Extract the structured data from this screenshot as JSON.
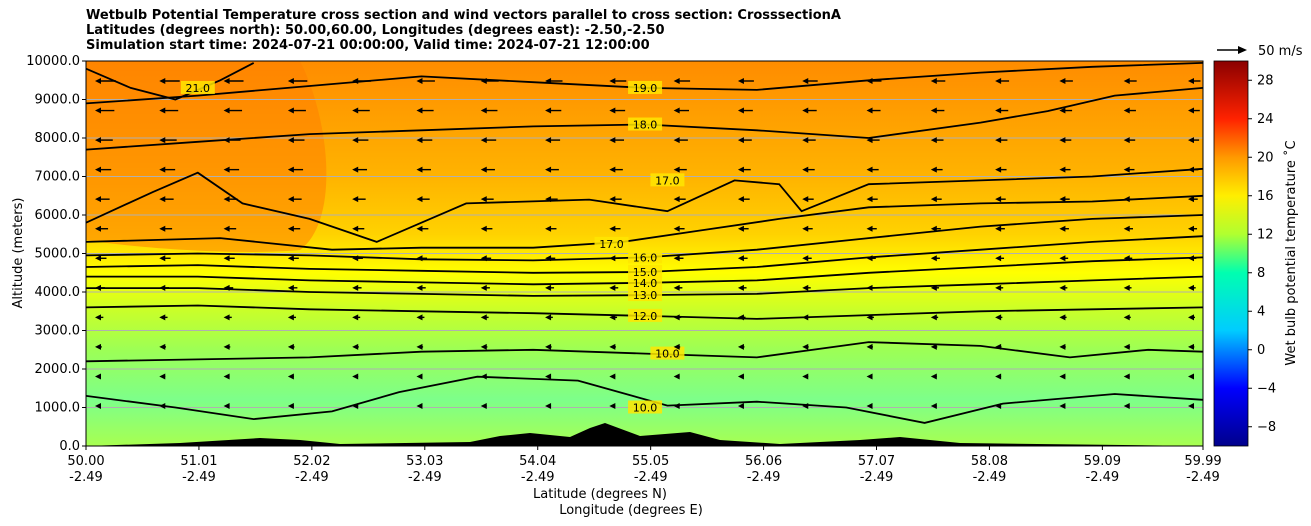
{
  "chart_data": {
    "type": "heatmap",
    "title_lines": [
      "Wetbulb Potential Temperature cross section and wind vectors parallel to cross section: CrosssectionA",
      "Latitudes (degrees north): 50.00,60.00, Longitudes (degrees east): -2.50,-2.50",
      "Simulation start time: 2024-07-21 00:00:00, Valid time: 2024-07-21 12:00:00"
    ],
    "xlabel_lat": "Latitude (degrees N)",
    "xlabel_lon": "Longitude (degrees E)",
    "ylabel": "Altitude (meters)",
    "colorbar_label": "Wet bulb potential temperature ˚C",
    "xlim": [
      50.0,
      59.99
    ],
    "ylim": [
      0,
      10000
    ],
    "x_ticks": [
      {
        "lat": "50.00",
        "lon": "-2.49",
        "v": 50.0
      },
      {
        "lat": "51.01",
        "lon": "-2.49",
        "v": 51.01
      },
      {
        "lat": "52.02",
        "lon": "-2.49",
        "v": 52.02
      },
      {
        "lat": "53.03",
        "lon": "-2.49",
        "v": 53.03
      },
      {
        "lat": "54.04",
        "lon": "-2.49",
        "v": 54.04
      },
      {
        "lat": "55.05",
        "lon": "-2.49",
        "v": 55.05
      },
      {
        "lat": "56.06",
        "lon": "-2.49",
        "v": 56.06
      },
      {
        "lat": "57.07",
        "lon": "-2.49",
        "v": 57.07
      },
      {
        "lat": "58.08",
        "lon": "-2.49",
        "v": 58.08
      },
      {
        "lat": "59.09",
        "lon": "-2.49",
        "v": 59.09
      },
      {
        "lat": "59.99",
        "lon": "-2.49",
        "v": 59.99
      }
    ],
    "y_ticks": [
      {
        "label": "0.0",
        "v": 0
      },
      {
        "label": "1000.0",
        "v": 1000
      },
      {
        "label": "2000.0",
        "v": 2000
      },
      {
        "label": "3000.0",
        "v": 3000
      },
      {
        "label": "4000.0",
        "v": 4000
      },
      {
        "label": "5000.0",
        "v": 5000
      },
      {
        "label": "6000.0",
        "v": 6000
      },
      {
        "label": "7000.0",
        "v": 7000
      },
      {
        "label": "8000.0",
        "v": 8000
      },
      {
        "label": "9000.0",
        "v": 9000
      },
      {
        "label": "10000.0",
        "v": 10000
      }
    ],
    "colorbar": {
      "range": [
        -10,
        30
      ],
      "ticks": [
        "−8",
        "−4",
        "0",
        "4",
        "8",
        "12",
        "16",
        "20",
        "24",
        "28"
      ],
      "tick_values": [
        -8,
        -4,
        0,
        4,
        8,
        12,
        16,
        20,
        24,
        28
      ],
      "stops": [
        {
          "v": -10,
          "color": "#00008b"
        },
        {
          "v": -4,
          "color": "#0000ff"
        },
        {
          "v": 2,
          "color": "#00ccff"
        },
        {
          "v": 8,
          "color": "#00ffb0"
        },
        {
          "v": 12,
          "color": "#b0ff30"
        },
        {
          "v": 16,
          "color": "#ffee00"
        },
        {
          "v": 20,
          "color": "#ff9900"
        },
        {
          "v": 24,
          "color": "#ff2200"
        },
        {
          "v": 30,
          "color": "#8b0000"
        }
      ]
    },
    "quiver_key_label": "50 m/s",
    "grid": true,
    "contours": [
      {
        "level": "10.0",
        "label_x": 55.0,
        "label_y": 1000,
        "points": [
          [
            50.0,
            1300
          ],
          [
            50.8,
            1000
          ],
          [
            51.5,
            700
          ],
          [
            52.2,
            900
          ],
          [
            52.8,
            1400
          ],
          [
            53.5,
            1800
          ],
          [
            54.4,
            1700
          ],
          [
            55.2,
            1050
          ],
          [
            56.0,
            1150
          ],
          [
            56.8,
            1000
          ],
          [
            57.5,
            600
          ],
          [
            58.2,
            1100
          ],
          [
            59.2,
            1350
          ],
          [
            59.99,
            1200
          ]
        ]
      },
      {
        "level": "10.0",
        "label_x": 55.2,
        "label_y": 2400,
        "points": [
          [
            50.0,
            2200
          ],
          [
            51.0,
            2250
          ],
          [
            52.0,
            2300
          ],
          [
            53.0,
            2450
          ],
          [
            54.0,
            2500
          ],
          [
            55.0,
            2400
          ],
          [
            56.0,
            2300
          ],
          [
            57.0,
            2700
          ],
          [
            58.0,
            2600
          ],
          [
            58.8,
            2300
          ],
          [
            59.5,
            2500
          ],
          [
            59.99,
            2450
          ]
        ]
      },
      {
        "level": "12.0",
        "label_x": 55.0,
        "label_y": 3380,
        "points": [
          [
            50.0,
            3600
          ],
          [
            51.0,
            3650
          ],
          [
            52.0,
            3550
          ],
          [
            53.0,
            3500
          ],
          [
            54.0,
            3450
          ],
          [
            55.0,
            3380
          ],
          [
            56.0,
            3300
          ],
          [
            57.0,
            3400
          ],
          [
            58.0,
            3500
          ],
          [
            59.0,
            3550
          ],
          [
            59.99,
            3600
          ]
        ]
      },
      {
        "level": "13.0",
        "label_x": 55.0,
        "label_y": 3920,
        "points": [
          [
            50.0,
            4100
          ],
          [
            51.0,
            4100
          ],
          [
            52.0,
            4000
          ],
          [
            53.0,
            3950
          ],
          [
            54.0,
            3900
          ],
          [
            55.0,
            3920
          ],
          [
            56.0,
            3950
          ],
          [
            57.0,
            4100
          ],
          [
            58.0,
            4200
          ],
          [
            59.0,
            4300
          ],
          [
            59.99,
            4400
          ]
        ]
      },
      {
        "level": "14.0",
        "label_x": 55.0,
        "label_y": 4240,
        "points": [
          [
            50.0,
            4400
          ],
          [
            51.0,
            4400
          ],
          [
            52.0,
            4300
          ],
          [
            53.0,
            4250
          ],
          [
            54.0,
            4200
          ],
          [
            55.0,
            4240
          ],
          [
            56.0,
            4300
          ],
          [
            57.0,
            4500
          ],
          [
            58.0,
            4650
          ],
          [
            59.0,
            4800
          ],
          [
            59.99,
            4900
          ]
        ]
      },
      {
        "level": "15.0",
        "label_x": 55.0,
        "label_y": 4520,
        "points": [
          [
            50.0,
            4650
          ],
          [
            51.0,
            4700
          ],
          [
            52.0,
            4600
          ],
          [
            53.0,
            4550
          ],
          [
            54.0,
            4500
          ],
          [
            55.0,
            4520
          ],
          [
            56.0,
            4650
          ],
          [
            57.0,
            4900
          ],
          [
            58.0,
            5100
          ],
          [
            59.0,
            5300
          ],
          [
            59.99,
            5450
          ]
        ]
      },
      {
        "level": "16.0",
        "label_x": 55.0,
        "label_y": 4900,
        "points": [
          [
            50.0,
            4950
          ],
          [
            51.0,
            5000
          ],
          [
            52.0,
            4950
          ],
          [
            53.0,
            4850
          ],
          [
            54.0,
            4820
          ],
          [
            55.0,
            4900
          ],
          [
            56.0,
            5100
          ],
          [
            57.0,
            5400
          ],
          [
            58.0,
            5700
          ],
          [
            59.0,
            5900
          ],
          [
            59.99,
            6000
          ]
        ]
      },
      {
        "level": "17.0",
        "label_x": 54.7,
        "label_y": 5250,
        "points": [
          [
            50.0,
            5300
          ],
          [
            51.2,
            5400
          ],
          [
            52.2,
            5100
          ],
          [
            53.0,
            5150
          ],
          [
            54.0,
            5150
          ],
          [
            54.8,
            5300
          ],
          [
            55.5,
            5600
          ],
          [
            56.2,
            5900
          ],
          [
            57.0,
            6200
          ],
          [
            58.0,
            6300
          ],
          [
            59.0,
            6350
          ],
          [
            59.99,
            6500
          ]
        ]
      },
      {
        "level": "17.0",
        "label_x": 55.2,
        "label_y": 6900,
        "points": [
          [
            50.0,
            5800
          ],
          [
            50.6,
            6600
          ],
          [
            51.0,
            7100
          ],
          [
            51.4,
            6300
          ],
          [
            52.0,
            5900
          ],
          [
            52.6,
            5300
          ],
          [
            53.0,
            5800
          ],
          [
            53.4,
            6300
          ],
          [
            54.5,
            6400
          ],
          [
            55.2,
            6100
          ],
          [
            55.8,
            6900
          ],
          [
            56.2,
            6800
          ],
          [
            56.4,
            6100
          ],
          [
            57.0,
            6800
          ],
          [
            58.0,
            6900
          ],
          [
            59.0,
            7000
          ],
          [
            59.99,
            7200
          ]
        ]
      },
      {
        "level": "18.0",
        "label_x": 55.0,
        "label_y": 8350,
        "points": [
          [
            50.0,
            7700
          ],
          [
            51.0,
            7900
          ],
          [
            52.0,
            8100
          ],
          [
            53.0,
            8200
          ],
          [
            54.0,
            8300
          ],
          [
            55.0,
            8350
          ],
          [
            56.0,
            8200
          ],
          [
            57.0,
            8000
          ],
          [
            58.0,
            8400
          ],
          [
            58.6,
            8700
          ],
          [
            59.2,
            9100
          ],
          [
            59.99,
            9300
          ]
        ]
      },
      {
        "level": "19.0",
        "label_x": 55.0,
        "label_y": 9300,
        "points": [
          [
            50.0,
            8900
          ],
          [
            51.0,
            9100
          ],
          [
            52.0,
            9350
          ],
          [
            53.0,
            9600
          ],
          [
            54.0,
            9450
          ],
          [
            55.0,
            9300
          ],
          [
            56.0,
            9250
          ],
          [
            57.0,
            9500
          ],
          [
            58.0,
            9700
          ],
          [
            59.0,
            9850
          ],
          [
            59.99,
            9950
          ]
        ]
      },
      {
        "level": "21.0",
        "label_x": 51.0,
        "label_y": 9300,
        "points": [
          [
            50.0,
            9800
          ],
          [
            50.4,
            9300
          ],
          [
            50.8,
            9000
          ],
          [
            51.2,
            9500
          ],
          [
            51.5,
            9950
          ]
        ]
      }
    ]
  }
}
